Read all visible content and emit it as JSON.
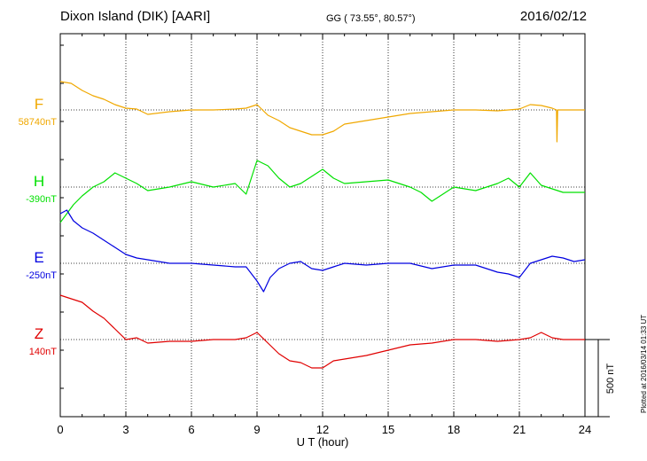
{
  "header": {
    "title": "Dixon Island (DIK)  [AARI]",
    "coords": "GG ( 73.55°,  80.57°)",
    "date": "2016/02/12",
    "plotted": "Plotted at 2016/03/14 01:33 UT"
  },
  "chart_data": {
    "type": "line",
    "title": "Dixon Island (DIK)  [AARI]",
    "xlabel": "U T (hour)",
    "xlim": [
      0,
      24
    ],
    "xticks": [
      0,
      3,
      6,
      9,
      12,
      15,
      18,
      21,
      24
    ],
    "scale_bar": "500 nT",
    "grid": true,
    "series": [
      {
        "name": "F",
        "baseline": "58740nT",
        "color": "#f0a800",
        "x": [
          0,
          0.5,
          1.0,
          1.5,
          2.0,
          2.5,
          3.0,
          3.5,
          4.0,
          5.0,
          6.0,
          7.0,
          8.0,
          8.5,
          9.0,
          9.5,
          10.0,
          10.5,
          11.0,
          11.5,
          12.0,
          12.5,
          13.0,
          14.0,
          15.0,
          16.0,
          17.0,
          18.0,
          19.0,
          20.0,
          21.0,
          21.5,
          22.0,
          22.5,
          22.7,
          22.72,
          22.75,
          23.0,
          24.0
        ],
        "y": [
          160,
          150,
          110,
          80,
          60,
          30,
          10,
          5,
          -25,
          -10,
          0,
          0,
          5,
          10,
          30,
          -30,
          -60,
          -100,
          -120,
          -140,
          -140,
          -120,
          -80,
          -60,
          -40,
          -20,
          -10,
          0,
          0,
          -5,
          5,
          30,
          25,
          10,
          0,
          -180,
          0,
          0,
          0
        ]
      },
      {
        "name": "H",
        "baseline": "-390nT",
        "color": "#00e000",
        "x": [
          0,
          0.3,
          0.6,
          1.0,
          1.5,
          2.0,
          2.5,
          3.0,
          3.5,
          4.0,
          5.0,
          6.0,
          7.0,
          8.0,
          8.5,
          9.0,
          9.5,
          10.0,
          10.5,
          11.0,
          11.5,
          12.0,
          12.5,
          13.0,
          14.0,
          15.0,
          16.0,
          16.5,
          17.0,
          17.5,
          18.0,
          19.0,
          20.0,
          20.5,
          21.0,
          21.5,
          22.0,
          23.0,
          24.0
        ],
        "y": [
          -200,
          -150,
          -100,
          -50,
          0,
          30,
          80,
          50,
          20,
          -20,
          0,
          30,
          0,
          20,
          -40,
          150,
          120,
          50,
          0,
          20,
          60,
          100,
          50,
          20,
          30,
          40,
          0,
          -30,
          -80,
          -40,
          0,
          -20,
          20,
          50,
          0,
          80,
          10,
          -30,
          -30
        ]
      },
      {
        "name": "E",
        "baseline": "-250nT",
        "color": "#0000e0",
        "x": [
          0,
          0.3,
          0.6,
          1.0,
          1.5,
          2.0,
          2.5,
          3.0,
          3.5,
          4.0,
          5.0,
          6.0,
          7.0,
          8.0,
          8.5,
          9.0,
          9.3,
          9.6,
          10.0,
          10.5,
          11.0,
          11.5,
          12.0,
          12.5,
          13.0,
          14.0,
          15.0,
          16.0,
          17.0,
          18.0,
          19.0,
          20.0,
          20.5,
          21.0,
          21.5,
          22.0,
          22.5,
          23.0,
          23.5,
          24.0
        ],
        "y": [
          280,
          300,
          240,
          200,
          170,
          130,
          90,
          50,
          30,
          20,
          0,
          0,
          -10,
          -20,
          -20,
          -100,
          -160,
          -80,
          -30,
          0,
          10,
          -30,
          -40,
          -20,
          0,
          -10,
          0,
          0,
          -30,
          -10,
          -10,
          -50,
          -60,
          -80,
          0,
          20,
          40,
          30,
          10,
          20
        ]
      },
      {
        "name": "Z",
        "baseline": "140nT",
        "color": "#e00000",
        "x": [
          0,
          0.5,
          1.0,
          1.5,
          2.0,
          2.5,
          3.0,
          3.5,
          4.0,
          5.0,
          6.0,
          7.0,
          8.0,
          8.5,
          9.0,
          9.5,
          10.0,
          10.5,
          11.0,
          11.5,
          12.0,
          12.5,
          13.0,
          14.0,
          15.0,
          16.0,
          17.0,
          18.0,
          19.0,
          20.0,
          21.0,
          21.5,
          22.0,
          22.5,
          23.0,
          24.0
        ],
        "y": [
          250,
          230,
          210,
          160,
          120,
          60,
          0,
          10,
          -20,
          -10,
          -10,
          0,
          0,
          10,
          40,
          -20,
          -80,
          -120,
          -130,
          -160,
          -160,
          -120,
          -110,
          -90,
          -60,
          -30,
          -20,
          0,
          0,
          -10,
          0,
          10,
          40,
          10,
          0,
          0
        ]
      }
    ]
  }
}
